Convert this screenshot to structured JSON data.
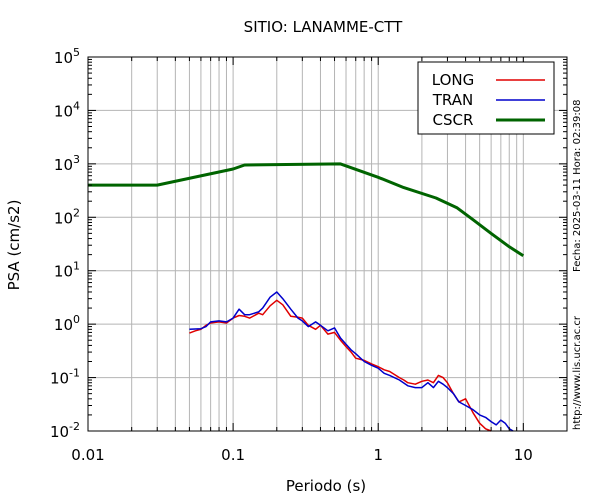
{
  "chart_data": {
    "type": "line",
    "title": "SITIO: LANAMME-CTT",
    "xlabel": "Periodo (s)",
    "ylabel": "PSA (cm/s2)",
    "xscale": "log",
    "yscale": "log",
    "xlim": [
      0.01,
      20
    ],
    "ylim": [
      0.01,
      100000
    ],
    "x_tick_labels": [
      "0.01",
      "0.1",
      "1",
      "10"
    ],
    "y_tick_labels": [
      {
        "base": "10",
        "exp": "-2"
      },
      {
        "base": "10",
        "exp": "-1"
      },
      {
        "base": "10",
        "exp": "0"
      },
      {
        "base": "10",
        "exp": "1"
      },
      {
        "base": "10",
        "exp": "2"
      },
      {
        "base": "10",
        "exp": "3"
      },
      {
        "base": "10",
        "exp": "4"
      },
      {
        "base": "10",
        "exp": "5"
      }
    ],
    "grid": true,
    "legend_position": "top-right",
    "series": [
      {
        "name": "LONG",
        "color": "#e00000",
        "points": [
          [
            0.05,
            0.68
          ],
          [
            0.055,
            0.75
          ],
          [
            0.06,
            0.8
          ],
          [
            0.065,
            0.95
          ],
          [
            0.07,
            1.05
          ],
          [
            0.08,
            1.1
          ],
          [
            0.09,
            1.05
          ],
          [
            0.1,
            1.3
          ],
          [
            0.11,
            1.45
          ],
          [
            0.12,
            1.4
          ],
          [
            0.13,
            1.3
          ],
          [
            0.15,
            1.6
          ],
          [
            0.16,
            1.5
          ],
          [
            0.18,
            2.2
          ],
          [
            0.2,
            2.8
          ],
          [
            0.22,
            2.3
          ],
          [
            0.25,
            1.4
          ],
          [
            0.28,
            1.35
          ],
          [
            0.3,
            1.3
          ],
          [
            0.33,
            0.95
          ],
          [
            0.37,
            0.8
          ],
          [
            0.4,
            0.95
          ],
          [
            0.45,
            0.65
          ],
          [
            0.5,
            0.7
          ],
          [
            0.55,
            0.5
          ],
          [
            0.6,
            0.38
          ],
          [
            0.65,
            0.3
          ],
          [
            0.7,
            0.23
          ],
          [
            0.8,
            0.21
          ],
          [
            0.9,
            0.18
          ],
          [
            1.0,
            0.16
          ],
          [
            1.1,
            0.14
          ],
          [
            1.2,
            0.13
          ],
          [
            1.4,
            0.1
          ],
          [
            1.5,
            0.09
          ],
          [
            1.6,
            0.08
          ],
          [
            1.8,
            0.075
          ],
          [
            2.0,
            0.085
          ],
          [
            2.2,
            0.09
          ],
          [
            2.4,
            0.08
          ],
          [
            2.6,
            0.11
          ],
          [
            2.8,
            0.1
          ],
          [
            3.0,
            0.08
          ],
          [
            3.3,
            0.05
          ],
          [
            3.6,
            0.035
          ],
          [
            4.0,
            0.04
          ],
          [
            4.5,
            0.022
          ],
          [
            5.0,
            0.014
          ],
          [
            5.5,
            0.011
          ],
          [
            6.0,
            0.01
          ]
        ]
      },
      {
        "name": "TRAN",
        "color": "#0000cc",
        "points": [
          [
            0.05,
            0.8
          ],
          [
            0.06,
            0.82
          ],
          [
            0.065,
            0.9
          ],
          [
            0.07,
            1.1
          ],
          [
            0.08,
            1.15
          ],
          [
            0.09,
            1.1
          ],
          [
            0.1,
            1.3
          ],
          [
            0.11,
            1.9
          ],
          [
            0.12,
            1.5
          ],
          [
            0.13,
            1.5
          ],
          [
            0.15,
            1.7
          ],
          [
            0.16,
            2.0
          ],
          [
            0.18,
            3.2
          ],
          [
            0.2,
            4.0
          ],
          [
            0.22,
            3.0
          ],
          [
            0.25,
            1.9
          ],
          [
            0.28,
            1.3
          ],
          [
            0.3,
            1.15
          ],
          [
            0.33,
            0.9
          ],
          [
            0.37,
            1.1
          ],
          [
            0.4,
            0.95
          ],
          [
            0.45,
            0.75
          ],
          [
            0.5,
            0.85
          ],
          [
            0.55,
            0.55
          ],
          [
            0.6,
            0.42
          ],
          [
            0.65,
            0.33
          ],
          [
            0.7,
            0.28
          ],
          [
            0.8,
            0.2
          ],
          [
            0.9,
            0.17
          ],
          [
            1.0,
            0.15
          ],
          [
            1.1,
            0.12
          ],
          [
            1.2,
            0.11
          ],
          [
            1.4,
            0.09
          ],
          [
            1.6,
            0.07
          ],
          [
            1.8,
            0.065
          ],
          [
            2.0,
            0.065
          ],
          [
            2.2,
            0.08
          ],
          [
            2.4,
            0.065
          ],
          [
            2.6,
            0.085
          ],
          [
            2.8,
            0.075
          ],
          [
            3.0,
            0.065
          ],
          [
            3.3,
            0.05
          ],
          [
            3.6,
            0.035
          ],
          [
            4.0,
            0.03
          ],
          [
            4.5,
            0.025
          ],
          [
            5.0,
            0.02
          ],
          [
            5.5,
            0.018
          ],
          [
            6.0,
            0.015
          ],
          [
            6.5,
            0.013
          ],
          [
            7.0,
            0.016
          ],
          [
            7.5,
            0.014
          ],
          [
            8.0,
            0.011
          ],
          [
            8.5,
            0.01
          ]
        ]
      },
      {
        "name": "CSCR",
        "color": "#006400",
        "points": [
          [
            0.01,
            400
          ],
          [
            0.03,
            400
          ],
          [
            0.1,
            800
          ],
          [
            0.12,
            950
          ],
          [
            0.55,
            1000
          ],
          [
            1.0,
            560
          ],
          [
            1.5,
            360
          ],
          [
            2.5,
            230
          ],
          [
            3.5,
            150
          ],
          [
            4.5,
            90
          ],
          [
            6.0,
            50
          ],
          [
            8.0,
            28
          ],
          [
            10.0,
            19
          ]
        ]
      }
    ]
  },
  "side_text": {
    "date_time": "Fecha: 2025-03-11 Hora: 02:39:08",
    "url": "http://www.lis.ucr.ac.cr"
  }
}
